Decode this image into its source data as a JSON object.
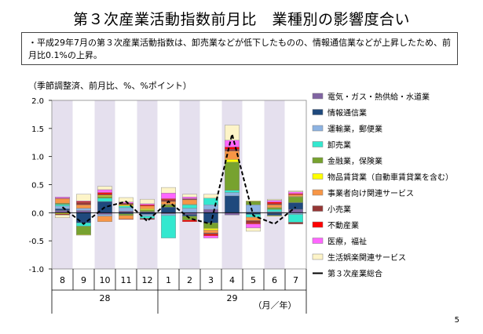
{
  "title": "第３次産業活動指数前月比　業種別の影響度合い",
  "summary": "・平成29年7月の第３次産業活動指数は、卸売業などが低下したものの、情報通信業などが上昇したため、前月比0.1%の上昇。",
  "unit_label": "（季節調整済、前月比、%、%ポイント）",
  "page_number": "5",
  "chart_data": {
    "type": "bar",
    "stacked": true,
    "ylim": [
      -1.0,
      2.0
    ],
    "yticks": [
      "2.0",
      "1.5",
      "1.0",
      "0.5",
      "0.0",
      "-0.5",
      "-1.0"
    ],
    "ytick_values": [
      2.0,
      1.5,
      1.0,
      0.5,
      0.0,
      -0.5,
      -1.0
    ],
    "categories": [
      "8",
      "9",
      "10",
      "11",
      "12",
      "1",
      "2",
      "3",
      "4",
      "5",
      "6",
      "7"
    ],
    "year_groups": [
      {
        "label": "28",
        "count": 5
      },
      {
        "label": "29",
        "count": 7
      }
    ],
    "xlabel": "（月／年）",
    "shaded_columns": [
      0,
      2,
      4,
      6,
      8,
      10
    ],
    "shade_color": "#e5e0ee",
    "series": [
      {
        "name": "電気・ガス・熱供給・水道業",
        "color": "#8064a2",
        "values": [
          0.04,
          0.04,
          -0.03,
          0.03,
          0.02,
          -0.02,
          -0.03,
          0.06,
          -0.04,
          0.01,
          -0.01,
          0.06
        ]
      },
      {
        "name": "情報通信業",
        "color": "#1f497d",
        "values": [
          0.03,
          -0.18,
          0.2,
          -0.02,
          -0.03,
          0.1,
          -0.03,
          -0.18,
          0.3,
          -0.03,
          -0.04,
          0.12
        ]
      },
      {
        "name": "運輸業，郵便業",
        "color": "#8db3e2",
        "values": [
          0.05,
          0.04,
          -0.03,
          0.06,
          -0.03,
          -0.03,
          0.08,
          0.08,
          0.06,
          0.13,
          0.02,
          -0.03
        ]
      },
      {
        "name": "卸売業",
        "color": "#33e8cf",
        "values": [
          0.03,
          -0.06,
          0.06,
          0.03,
          -0.04,
          -0.4,
          0.06,
          0.12,
          0.04,
          -0.05,
          0.04,
          -0.14
        ]
      },
      {
        "name": "金融業，保険業",
        "color": "#77a22f",
        "values": [
          0.02,
          -0.15,
          0.03,
          -0.03,
          0.03,
          0.04,
          -0.07,
          -0.1,
          0.5,
          0.06,
          0.03,
          0.1
        ]
      },
      {
        "name": "物品賃貸業（自動車賃貸業を含む）",
        "color": "#ffff00",
        "values": [
          -0.02,
          -0.01,
          0.02,
          0.02,
          0.02,
          0.01,
          0.01,
          -0.03,
          0.05,
          0.01,
          -0.01,
          0.01
        ]
      },
      {
        "name": "事業者向け関連サービス",
        "color": "#f79646",
        "values": [
          0.08,
          0.06,
          -0.1,
          -0.06,
          0.05,
          0.05,
          0.08,
          -0.05,
          0.15,
          -0.06,
          0.05,
          0.03
        ]
      },
      {
        "name": "小売業",
        "color": "#953735",
        "values": [
          -0.02,
          0.04,
          0.02,
          0.03,
          -0.02,
          0.03,
          0.02,
          -0.02,
          0.03,
          -0.04,
          0.02,
          -0.03
        ]
      },
      {
        "name": "不動産業",
        "color": "#ff0000",
        "values": [
          0.01,
          0.02,
          0.03,
          -0.01,
          0.02,
          0.02,
          -0.03,
          -0.03,
          0.04,
          -0.02,
          0.03,
          0.02
        ]
      },
      {
        "name": "医療，福祉",
        "color": "#ff66ff",
        "values": [
          0.02,
          0.01,
          0.05,
          0.02,
          0.02,
          0.1,
          0.03,
          -0.04,
          0.12,
          -0.07,
          0.03,
          0.03
        ]
      },
      {
        "name": "生活娯楽関連サービス",
        "color": "#fdf4c8",
        "values": [
          -0.05,
          0.12,
          0.06,
          0.08,
          0.08,
          0.1,
          0.05,
          0.07,
          0.27,
          -0.06,
          0.02,
          0.02
        ]
      }
    ],
    "line": {
      "name": "第３次産業総合",
      "values": [
        0.1,
        -0.2,
        0.1,
        0.2,
        -0.15,
        0.2,
        -0.1,
        -0.2,
        1.4,
        -0.05,
        -0.2,
        0.1
      ]
    }
  }
}
